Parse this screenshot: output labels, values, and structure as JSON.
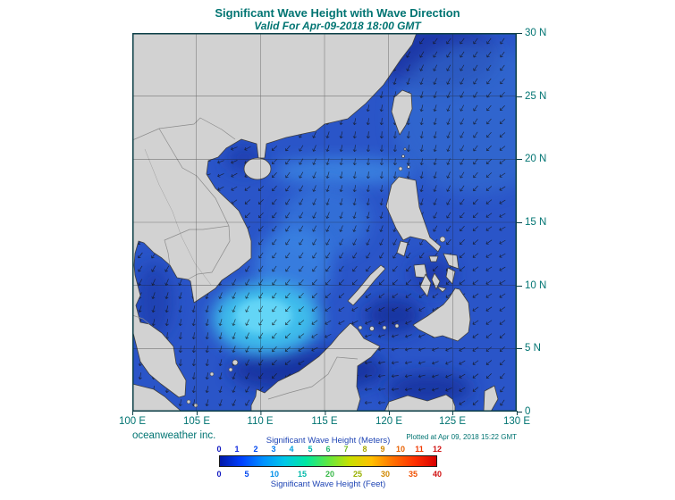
{
  "header": {
    "title": "Significant Wave Height with Wave Direction",
    "subtitle": "Valid For Apr-09-2018 18:00 GMT"
  },
  "map": {
    "x_ticks": [
      "100 E",
      "105 E",
      "110 E",
      "115 E",
      "120 E",
      "125 E",
      "130 E"
    ],
    "y_ticks": [
      "30 N",
      "25 N",
      "20 N",
      "15 N",
      "10 N",
      "5 N",
      "0"
    ]
  },
  "footer": {
    "credit": "oceanweather inc.",
    "plotted": "Plotted at Apr 09, 2018 15:22 GMT"
  },
  "legend": {
    "meters_label": "Significant Wave Height (Meters)",
    "feet_label": "Significant Wave Height (Feet)",
    "meters_ticks": [
      "0",
      "1",
      "2",
      "3",
      "4",
      "5",
      "6",
      "7",
      "8",
      "9",
      "10",
      "11",
      "12"
    ],
    "meters_colors": [
      "#1018c0",
      "#1028e0",
      "#0048f0",
      "#0078f0",
      "#00a0e0",
      "#00b8b0",
      "#20b870",
      "#70b820",
      "#a8a800",
      "#d08800",
      "#e86000",
      "#f03800",
      "#d01010"
    ],
    "feet_ticks": [
      "0",
      "5",
      "10",
      "15",
      "20",
      "25",
      "30",
      "35",
      "40"
    ],
    "feet_colors": [
      "#1018c0",
      "#0048f0",
      "#0090e8",
      "#00b8a8",
      "#38b848",
      "#98b000",
      "#d08800",
      "#f05000",
      "#d01010"
    ],
    "gradient": [
      "#0018a8",
      "#0040ff",
      "#0090ff",
      "#00c8e8",
      "#00e8a0",
      "#60e840",
      "#c8e000",
      "#ffc000",
      "#ff7000",
      "#ff3000",
      "#d80000"
    ]
  },
  "arrows": {
    "color": "#141414",
    "note": "wave direction arrows, predominantly from northeast toward southwest"
  },
  "chart_data": {
    "type": "heatmap",
    "title": "Significant Wave Height with Wave Direction",
    "valid_time": "Apr-09-2018 18:00 GMT",
    "region": {
      "lon_min_deg_e": 100,
      "lon_max_deg_e": 130,
      "lat_min_deg_n": 0,
      "lat_max_deg_n": 30
    },
    "grid_interval_deg": 5,
    "variable": "significant wave height",
    "units": [
      "meters",
      "feet"
    ],
    "scale_meters": [
      0,
      12
    ],
    "scale_feet": [
      0,
      40
    ],
    "overlay": "wave direction arrows",
    "notable_features": [
      "highest waves (~2-3 m, cyan patch) southeast of Vietnam near 110E 5-10N",
      "moderate waves (~1-1.5 m) across central South China Sea and Luzon Strait band near 19N",
      "low waves (dark blue, <1 m) in coastal waters, Gulf of Tonkin, Gulf of Thailand, Sulu and Celebes Seas",
      "land shown gray: China, Indochina, Malay Peninsula, Borneo, Taiwan, Hainan, Philippines"
    ]
  }
}
